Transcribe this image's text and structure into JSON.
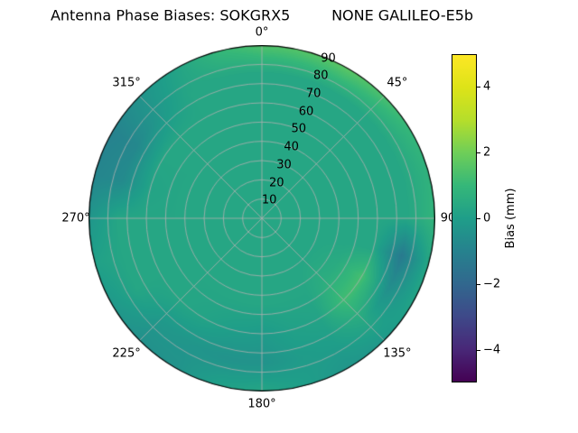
{
  "figure": {
    "background": "#ffffff"
  },
  "chart_data": {
    "type": "heatmap",
    "projection": "polar",
    "title": "Antenna Phase Biases: SOKGRX5         NONE GALILEO-E5b",
    "angular_tick_labels": [
      "0°",
      "45°",
      "90",
      "135°",
      "180°",
      "225°",
      "270°",
      "315°"
    ],
    "angular_tick_degrees": [
      0,
      45,
      90,
      135,
      180,
      225,
      270,
      315
    ],
    "radial_tick_labels": [
      "10",
      "20",
      "30",
      "40",
      "50",
      "60",
      "70",
      "80",
      "90"
    ],
    "radial_tick_values": [
      10,
      20,
      30,
      40,
      50,
      60,
      70,
      80,
      90
    ],
    "radial_max": 90,
    "radial_label_angle_deg": 22.5,
    "grid_line_color": "#b0b0b0",
    "colorbar": {
      "label": "Bias (mm)",
      "tick_values": [
        4,
        2,
        0,
        -2,
        -4
      ],
      "tick_labels": [
        "4",
        "2",
        "0",
        "−2",
        "−4"
      ],
      "vmin": -5,
      "vmax": 5,
      "colormap": "viridis",
      "colormap_stops": [
        {
          "t": 0.0,
          "hex": "#440154"
        },
        {
          "t": 0.1,
          "hex": "#482878"
        },
        {
          "t": 0.2,
          "hex": "#3e4989"
        },
        {
          "t": 0.3,
          "hex": "#31688e"
        },
        {
          "t": 0.4,
          "hex": "#26828e"
        },
        {
          "t": 0.5,
          "hex": "#1f9e89"
        },
        {
          "t": 0.6,
          "hex": "#35b779"
        },
        {
          "t": 0.7,
          "hex": "#6ece58"
        },
        {
          "t": 0.8,
          "hex": "#b5de2b"
        },
        {
          "t": 0.9,
          "hex": "#dde318"
        },
        {
          "t": 1.0,
          "hex": "#fde725"
        }
      ]
    },
    "grid": {
      "azimuth_deg": [
        0,
        15,
        30,
        45,
        60,
        75,
        90,
        105,
        120,
        135,
        150,
        165,
        180,
        195,
        210,
        225,
        240,
        255,
        270,
        285,
        300,
        315,
        330,
        345,
        360
      ],
      "zenith_deg": [
        0,
        15,
        30,
        45,
        60,
        75,
        90
      ],
      "bias_mm": [
        [
          0.3,
          0.3,
          0.3,
          0.3,
          0.3,
          0.3,
          0.3,
          0.3,
          0.3,
          0.3,
          0.3,
          0.3,
          0.3,
          0.3,
          0.3,
          0.3,
          0.3,
          0.3,
          0.3,
          0.3,
          0.3,
          0.3,
          0.3,
          0.3,
          0.3
        ],
        [
          0.3,
          0.3,
          0.3,
          0.3,
          0.3,
          0.3,
          0.3,
          0.3,
          0.3,
          0.3,
          0.3,
          0.3,
          0.3,
          0.3,
          0.3,
          0.3,
          0.3,
          0.3,
          0.3,
          0.3,
          0.3,
          0.3,
          0.3,
          0.3,
          0.3
        ],
        [
          0.3,
          0.3,
          0.3,
          0.3,
          0.3,
          0.3,
          0.3,
          0.3,
          0.3,
          0.3,
          0.3,
          0.3,
          0.3,
          0.3,
          0.3,
          0.3,
          0.3,
          0.3,
          0.3,
          0.3,
          0.3,
          0.3,
          0.3,
          0.3,
          0.3
        ],
        [
          0.3,
          0.3,
          0.3,
          0.3,
          0.3,
          0.3,
          0.3,
          0.3,
          0.5,
          0.6,
          0.3,
          0.3,
          0.3,
          0.3,
          0.3,
          0.3,
          0.3,
          0.3,
          0.3,
          0.3,
          0.3,
          0.3,
          0.3,
          0.3,
          0.3
        ],
        [
          0.3,
          0.3,
          0.3,
          0.3,
          0.3,
          0.3,
          0.3,
          0.3,
          1.3,
          1.2,
          0.2,
          0.1,
          -0.1,
          0.0,
          0.2,
          0.3,
          0.3,
          0.3,
          0.3,
          0.2,
          0.3,
          0.3,
          0.3,
          0.3,
          0.3
        ],
        [
          0.3,
          0.3,
          0.3,
          0.3,
          0.3,
          0.3,
          0.3,
          -1.3,
          -0.5,
          0.4,
          0.0,
          -0.1,
          -0.4,
          -0.4,
          -0.3,
          -0.2,
          0.3,
          0.3,
          0.3,
          -0.7,
          -0.8,
          -0.2,
          0.3,
          0.3,
          0.3
        ],
        [
          1.5,
          1.6,
          1.7,
          1.4,
          1.0,
          0.8,
          0.9,
          0.4,
          0.2,
          -0.2,
          -0.3,
          0.0,
          0.3,
          0.1,
          -0.4,
          -0.5,
          -0.2,
          0.1,
          -0.3,
          -0.9,
          -1.0,
          -0.4,
          0.2,
          1.0,
          1.5
        ]
      ]
    }
  }
}
